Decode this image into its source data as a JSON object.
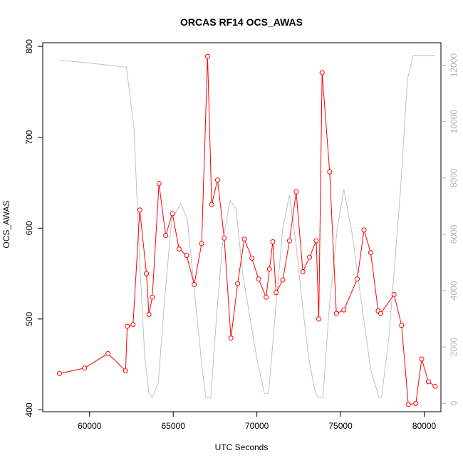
{
  "chart_data": {
    "type": "line",
    "title": "ORCAS RF14 OCS_AWAS",
    "xlabel": "UTC Seconds",
    "ylabel": "OCS_AWAS",
    "xlim": [
      57200,
      81000
    ],
    "ylim": [
      398,
      804
    ],
    "y2lim": [
      -300,
      12800
    ],
    "x_ticks": [
      60000,
      65000,
      70000,
      75000,
      80000
    ],
    "x_tick_labels": [
      "60000",
      "65000",
      "70000",
      "75000",
      "80000"
    ],
    "y_ticks": [
      400,
      500,
      600,
      700,
      800
    ],
    "y_tick_labels": [
      "400",
      "500",
      "600",
      "700",
      "800"
    ],
    "y2_ticks": [
      0,
      2000,
      4000,
      6000,
      8000,
      10000,
      12000
    ],
    "y2_tick_labels": [
      "0",
      "2000",
      "4000",
      "6000",
      "8000",
      "10000",
      "12000"
    ],
    "grid": false,
    "legend": "none",
    "series": [
      {
        "axis": "left",
        "color": "#ff0000",
        "marker": "open-circle",
        "x": [
          58200,
          59700,
          61100,
          62150,
          62250,
          62600,
          63000,
          63400,
          63550,
          63750,
          64150,
          64550,
          64950,
          65350,
          65800,
          66250,
          66700,
          67050,
          67300,
          67650,
          68050,
          68450,
          68850,
          69250,
          69700,
          70100,
          70550,
          70750,
          70950,
          71150,
          71550,
          71950,
          72350,
          72750,
          73150,
          73550,
          73700,
          73900,
          74350,
          74750,
          75200,
          76000,
          76400,
          76800,
          77250,
          77400,
          78200,
          78650,
          79050,
          79500,
          79850,
          80250,
          80650
        ],
        "y": [
          440,
          446,
          462,
          443,
          492,
          494,
          620,
          550,
          505,
          524,
          649,
          592,
          616,
          577,
          570,
          538,
          583,
          789,
          626,
          653,
          589,
          479,
          539,
          588,
          567,
          544,
          524,
          555,
          585,
          529,
          543,
          586,
          640,
          552,
          568,
          586,
          500,
          771,
          662,
          506,
          510,
          544,
          598,
          573,
          509,
          506,
          527,
          493,
          406,
          407,
          456,
          431,
          426
        ]
      },
      {
        "axis": "right",
        "color": "#c0c0c0",
        "marker": "none",
        "x": [
          58200,
          60000,
          62200,
          62650,
          63000,
          63300,
          63550,
          63750,
          64100,
          64500,
          64900,
          65450,
          65850,
          66300,
          66700,
          66950,
          67250,
          67600,
          67950,
          68400,
          68750,
          69150,
          69600,
          70000,
          70450,
          70700,
          71100,
          71550,
          71950,
          72350,
          72700,
          73100,
          73500,
          73700,
          73950,
          74300,
          74800,
          75200,
          75700,
          76150,
          76800,
          77300,
          77450,
          77900,
          78600,
          79000,
          79350,
          80000,
          80650
        ],
        "y": [
          12180,
          12080,
          11930,
          9800,
          5000,
          1600,
          350,
          200,
          700,
          3800,
          6500,
          7100,
          6500,
          3800,
          1400,
          200,
          200,
          3200,
          5700,
          7200,
          6900,
          4600,
          3000,
          1600,
          350,
          350,
          3200,
          6200,
          7400,
          5600,
          3600,
          1600,
          350,
          200,
          200,
          3200,
          6200,
          7600,
          6000,
          4000,
          1200,
          200,
          200,
          2400,
          7700,
          11500,
          12350,
          12350,
          12350
        ]
      }
    ]
  }
}
